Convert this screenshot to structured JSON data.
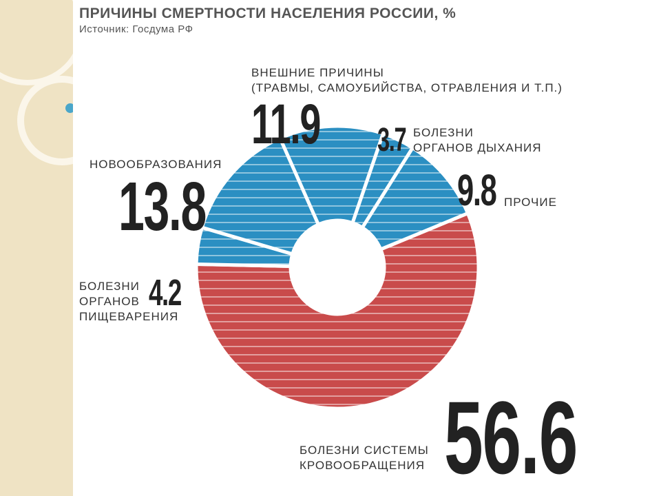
{
  "chart_data": {
    "type": "donut",
    "title": "ПРИЧИНЫ СМЕРТНОСТИ НАСЕЛЕНИЯ РОССИИ, %",
    "subtitle": "Источник: Госдума РФ",
    "categories": [
      "БОЛЕЗНИ СИСТЕМЫ\nКРОВООБРАЩЕНИЯ",
      "БОЛЕЗНИ\nОРГАНОВ\nПИЩЕВАРЕНИЯ",
      "НОВООБРАЗОВАНИЯ",
      "ВНЕШНИЕ ПРИЧИНЫ\n(ТРАВМЫ, САМОУБИЙСТВА, ОТРАВЛЕНИЯ И Т.П.)",
      "БОЛЕЗНИ\nОРГАНОВ ДЫХАНИЯ",
      "ПРОЧИЕ"
    ],
    "values": [
      56.6,
      4.2,
      13.8,
      11.9,
      3.7,
      9.8
    ],
    "colors": [
      "#c94b4b",
      "#2b8fc2",
      "#2b8fc2",
      "#2b8fc2",
      "#2b8fc2",
      "#2b8fc2"
    ]
  }
}
